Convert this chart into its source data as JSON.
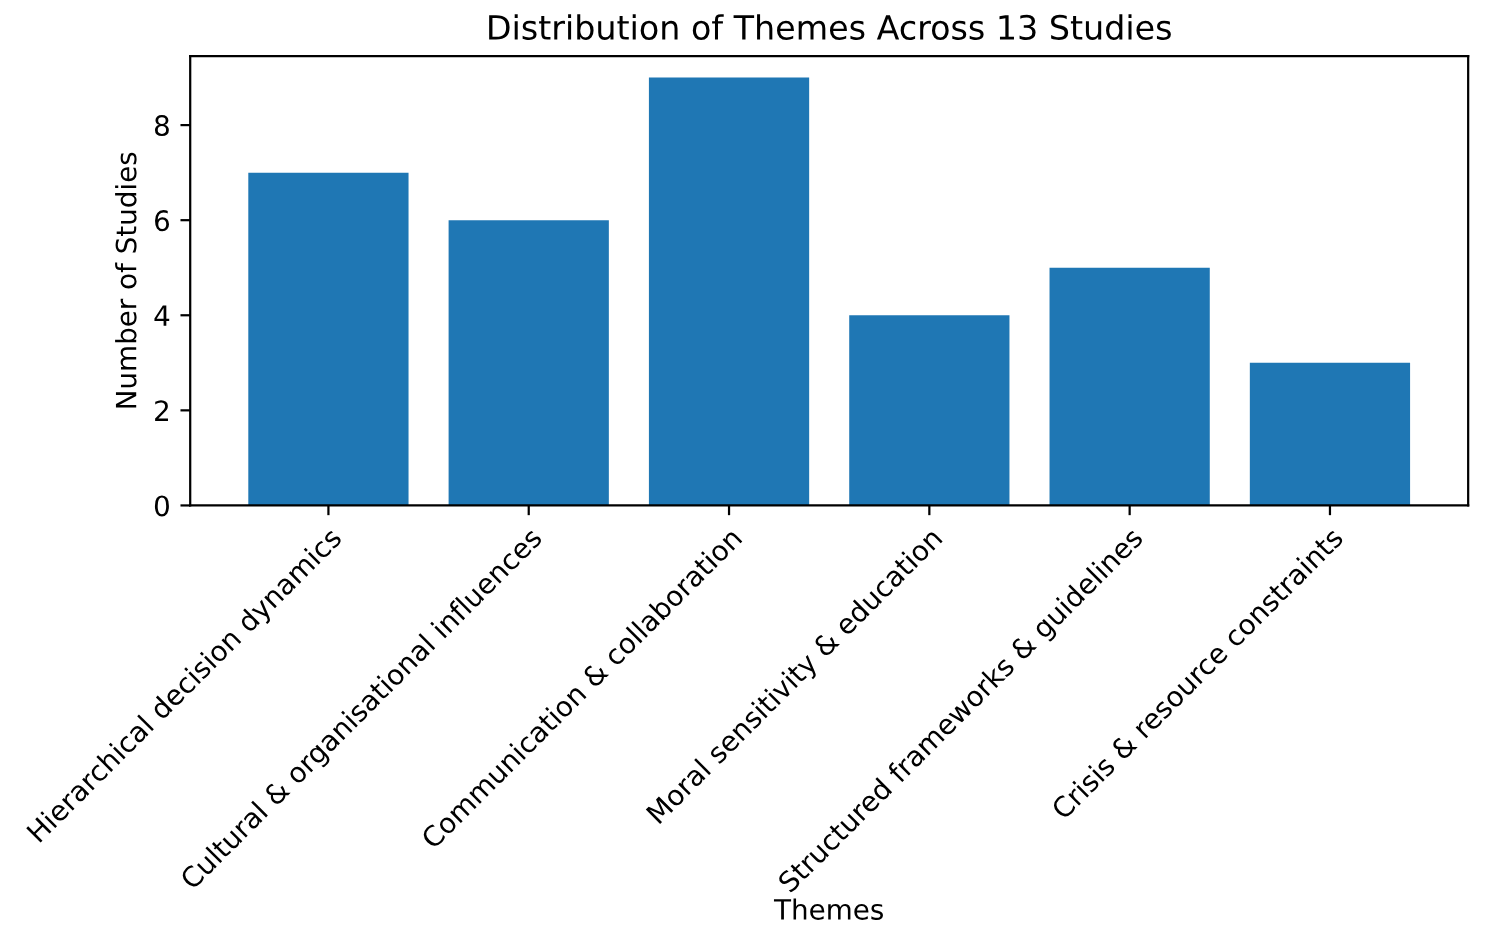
{
  "chart_data": {
    "type": "bar",
    "title": "Distribution of Themes Across 13 Studies",
    "xlabel": "Themes",
    "ylabel": "Number of Studies",
    "categories": [
      "Hierarchical decision dynamics",
      "Cultural & organisational influences",
      "Communication & collaboration",
      "Moral sensitivity & education",
      "Structured frameworks & guidelines",
      "Crisis & resource constraints"
    ],
    "values": [
      7,
      6,
      9,
      4,
      5,
      3
    ],
    "color": "#1f77b4",
    "ylim": [
      0,
      9.45
    ],
    "yticks": [
      0,
      2,
      4,
      6,
      8
    ],
    "grid": false
  }
}
